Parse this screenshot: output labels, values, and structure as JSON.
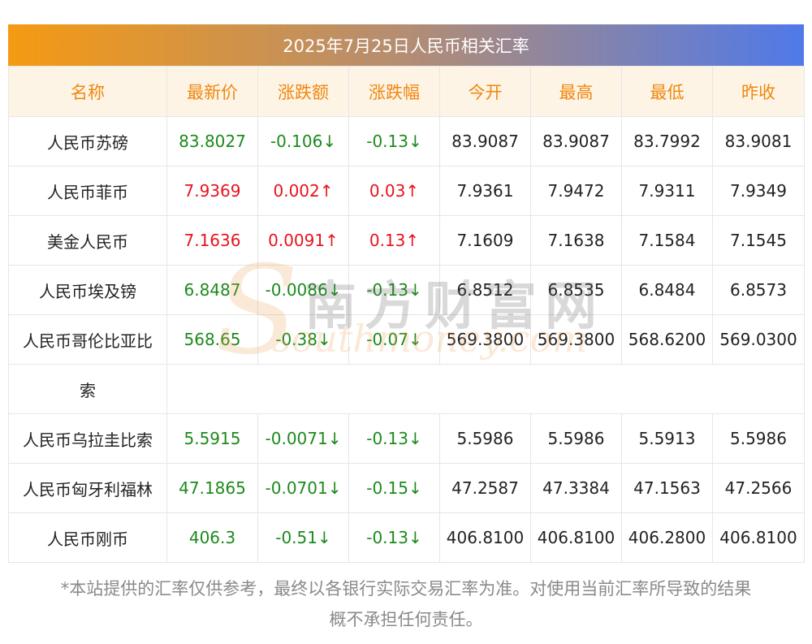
{
  "title": "2025年7月25日人民币相关汇率",
  "columns": [
    "名称",
    "最新价",
    "涨跌额",
    "涨跌幅",
    "今开",
    "最高",
    "最低",
    "昨收"
  ],
  "rows": [
    {
      "name": "人民币苏磅",
      "latest": "83.8027",
      "change": "-0.106↓",
      "pct": "-0.13↓",
      "open": "83.9087",
      "high": "83.9087",
      "low": "83.7992",
      "prev": "83.9081",
      "trend": "down"
    },
    {
      "name": "人民币菲币",
      "latest": "7.9369",
      "change": "0.002↑",
      "pct": "0.03↑",
      "open": "7.9361",
      "high": "7.9472",
      "low": "7.9311",
      "prev": "7.9349",
      "trend": "up"
    },
    {
      "name": "美金人民币",
      "latest": "7.1636",
      "change": "0.0091↑",
      "pct": "0.13↑",
      "open": "7.1609",
      "high": "7.1638",
      "low": "7.1584",
      "prev": "7.1545",
      "trend": "up"
    },
    {
      "name": "人民币埃及镑",
      "latest": "6.8487",
      "change": "-0.0086↓",
      "pct": "-0.13↓",
      "open": "6.8512",
      "high": "6.8535",
      "low": "6.8484",
      "prev": "6.8573",
      "trend": "down"
    },
    {
      "name_line1": "人民币哥伦比亚比",
      "name_line2": "索",
      "latest": "568.65",
      "change": "-0.38↓",
      "pct": "-0.07↓",
      "open": "569.3800",
      "high": "569.3800",
      "low": "568.6200",
      "prev": "569.0300",
      "trend": "down"
    },
    {
      "name": "人民币乌拉圭比索",
      "latest": "5.5915",
      "change": "-0.0071↓",
      "pct": "-0.13↓",
      "open": "5.5986",
      "high": "5.5986",
      "low": "5.5913",
      "prev": "5.5986",
      "trend": "down"
    },
    {
      "name": "人民币匈牙利福林",
      "latest": "47.1865",
      "change": "-0.0701↓",
      "pct": "-0.15↓",
      "open": "47.2587",
      "high": "47.3384",
      "low": "47.1563",
      "prev": "47.2566",
      "trend": "down"
    },
    {
      "name": "人民币刚币",
      "latest": "406.3",
      "change": "-0.51↓",
      "pct": "-0.13↓",
      "open": "406.8100",
      "high": "406.8100",
      "low": "406.2800",
      "prev": "406.8100",
      "trend": "down"
    }
  ],
  "watermark": {
    "cn": "南方财富网",
    "en": "southmoney.com",
    "s": "S"
  },
  "footer": {
    "line1": "*本站提供的汇率仅供参考，最终以各银行实际交易汇率为准。对使用当前汇率所导致的结果",
    "line2": "概不承担任何责任。"
  },
  "colors": {
    "up": "#e8131e",
    "down": "#1c8a1c",
    "header_text": "#f0870f",
    "header_bg": "#fdf4e6"
  }
}
